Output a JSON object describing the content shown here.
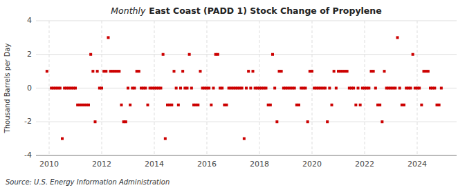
{
  "chart_data": {
    "type": "scatter",
    "title": "East Coast (PADD 1) Stock Change of Propylene",
    "subtitle": "Monthly",
    "ylabel": "Thousand Barrels per Day",
    "annotations": [
      "Source: U.S. Energy Information Administration"
    ],
    "color": "#cc0000",
    "marker": "square",
    "grid": true,
    "xlim": [
      2009.5,
      2025.5
    ],
    "xticks": [
      2010,
      2012,
      2014,
      2016,
      2018,
      2020,
      2022,
      2024
    ],
    "ylim": [
      -4,
      4
    ],
    "yticks": [
      -4,
      -2,
      0,
      2,
      4
    ],
    "x": [
      2009.917,
      2010.083,
      2010.167,
      2010.25,
      2010.333,
      2010.417,
      2010.5,
      2010.583,
      2010.667,
      2010.75,
      2010.833,
      2010.917,
      2011.0,
      2011.083,
      2011.167,
      2011.25,
      2011.333,
      2011.417,
      2011.5,
      2011.583,
      2011.667,
      2011.75,
      2011.833,
      2011.917,
      2012.0,
      2012.083,
      2012.167,
      2012.25,
      2012.333,
      2012.417,
      2012.5,
      2012.583,
      2012.667,
      2012.75,
      2012.833,
      2012.917,
      2013.0,
      2013.083,
      2013.167,
      2013.25,
      2013.333,
      2013.417,
      2013.5,
      2013.583,
      2013.667,
      2013.75,
      2013.833,
      2013.917,
      2014.0,
      2014.083,
      2014.167,
      2014.25,
      2014.333,
      2014.417,
      2014.5,
      2014.583,
      2014.667,
      2014.75,
      2014.833,
      2014.917,
      2015.0,
      2015.083,
      2015.167,
      2015.25,
      2015.333,
      2015.417,
      2015.5,
      2015.583,
      2015.667,
      2015.75,
      2015.833,
      2015.917,
      2016.0,
      2016.083,
      2016.167,
      2016.25,
      2016.333,
      2016.417,
      2016.5,
      2016.583,
      2016.667,
      2016.75,
      2016.833,
      2016.917,
      2017.0,
      2017.083,
      2017.167,
      2017.25,
      2017.333,
      2017.417,
      2017.5,
      2017.583,
      2017.667,
      2017.75,
      2017.833,
      2017.917,
      2018.0,
      2018.083,
      2018.167,
      2018.25,
      2018.333,
      2018.417,
      2018.5,
      2018.583,
      2018.667,
      2018.75,
      2018.833,
      2018.917,
      2019.0,
      2019.083,
      2019.167,
      2019.25,
      2019.333,
      2019.417,
      2019.5,
      2019.583,
      2019.667,
      2019.75,
      2019.833,
      2019.917,
      2020.0,
      2020.083,
      2020.167,
      2020.25,
      2020.333,
      2020.417,
      2020.5,
      2020.583,
      2020.667,
      2020.75,
      2020.833,
      2020.917,
      2021.0,
      2021.083,
      2021.167,
      2021.25,
      2021.333,
      2021.417,
      2021.5,
      2021.583,
      2021.667,
      2021.75,
      2021.833,
      2021.917,
      2022.0,
      2022.083,
      2022.167,
      2022.25,
      2022.333,
      2022.417,
      2022.5,
      2022.583,
      2022.667,
      2022.75,
      2022.833,
      2022.917,
      2023.0,
      2023.083,
      2023.167,
      2023.25,
      2023.333,
      2023.417,
      2023.5,
      2023.583,
      2023.667,
      2023.75,
      2023.833,
      2023.917,
      2024.0,
      2024.083,
      2024.167,
      2024.25,
      2024.333,
      2024.417,
      2024.5,
      2024.583,
      2024.667,
      2024.75,
      2024.833,
      2024.917
    ],
    "values": [
      1,
      0,
      0,
      0,
      0,
      0,
      -3,
      0,
      0,
      0,
      0,
      0,
      0,
      -1,
      -1,
      -1,
      -1,
      -1,
      -1,
      2,
      1,
      -2,
      1,
      0,
      0,
      1,
      1,
      3,
      1,
      1,
      1,
      1,
      1,
      -1,
      -2,
      -2,
      0,
      -1,
      0,
      0,
      1,
      1,
      0,
      0,
      0,
      -1,
      0,
      0,
      0,
      0,
      0,
      0,
      2,
      -3,
      -1,
      -1,
      -1,
      1,
      0,
      -1,
      0,
      1,
      0,
      0,
      2,
      0,
      -1,
      -1,
      -1,
      1,
      0,
      0,
      0,
      0,
      -1,
      0,
      2,
      2,
      0,
      0,
      -1,
      -1,
      0,
      0,
      0,
      0,
      0,
      0,
      0,
      -3,
      0,
      1,
      0,
      1,
      0,
      0,
      0,
      0,
      0,
      0,
      -1,
      -1,
      2,
      0,
      -2,
      1,
      1,
      0,
      0,
      0,
      0,
      0,
      0,
      -1,
      -1,
      0,
      0,
      0,
      -2,
      1,
      1,
      0,
      0,
      0,
      0,
      0,
      0,
      -2,
      0,
      -1,
      1,
      0,
      1,
      1,
      1,
      1,
      1,
      0,
      0,
      0,
      -1,
      0,
      -1,
      0,
      0,
      0,
      0,
      1,
      1,
      0,
      -1,
      -1,
      -2,
      1,
      0,
      0,
      0,
      0,
      0,
      3,
      0,
      -1,
      -1,
      0,
      0,
      0,
      2,
      0,
      0,
      0,
      -1,
      1,
      1,
      1,
      0,
      0,
      0,
      -1,
      -1,
      0
    ]
  }
}
